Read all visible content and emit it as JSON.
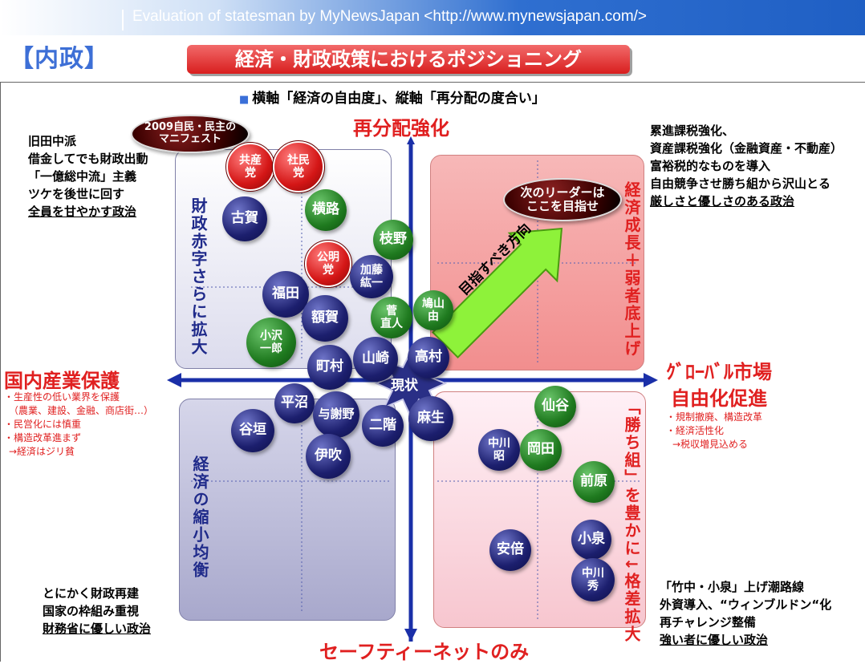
{
  "header": "Evaluation of statesman   by MyNewsJapan <http://www.mynewsjapan.com/>",
  "section_title": "【内政】",
  "main_title": "経済・財政政策におけるポジショニング",
  "subtitle": "横軸「経済の自由度」、縦軸「再分配の度合い」",
  "axes": {
    "top": "再分配強化",
    "bottom": "セーフティーネットのみ",
    "left": "国内産業保護",
    "right_line1": "ｸﾞﾛｰﾊﾞﾙ市場",
    "right_line2": "自由化促進",
    "center": "現状"
  },
  "quadrant_labels": {
    "top_left": "財政赤字さらに拡大",
    "bottom_left": "経済の縮小均衡",
    "top_right": "経済成長＋弱者底上げ",
    "bottom_right": "「勝ち組」を豊かに↓格差拡大"
  },
  "notes": {
    "top_left": [
      "旧田中派",
      "借金してでも財政出動",
      "「一億総中流」主義",
      "ツケを後世に回す",
      "全員を甘やかす政治"
    ],
    "top_right": [
      "累進課税強化、",
      "資産課税強化（金融資産・不動産）",
      "富裕税的なものを導入",
      "自由競争させ勝ち組から沢山とる",
      "厳しさと優しさのある政治"
    ],
    "bottom_left": [
      "とにかく財政再建",
      "国家の枠組み重視",
      "財務省に優しい政治"
    ],
    "bottom_right": [
      "「竹中・小泉」上げ潮路線",
      "外資導入、“ウィンブルドン“化",
      "再チャレンジ整備",
      "強い者に優しい政治"
    ]
  },
  "left_notes": [
    "・生産性の低い業界を保護",
    "（農業、建設、金融、商店街…）",
    "・民営化には慎重",
    "・構造改革進まず",
    "→経済はジリ貧"
  ],
  "right_notes": [
    "・規制撤廃、構造改革",
    "・経済活性化",
    "→税収増見込める"
  ],
  "manifesto_label": "2009自民・民主の\nマニフェスト",
  "leader_label": "次のリーダーは\nここを目指せ",
  "arrow_label": "目指すべき方向",
  "colors": {
    "navy": "#1c1f6e",
    "green": "#1f7a1f",
    "red": "#d41616",
    "axis": "#1a2fa8"
  },
  "politicians": [
    {
      "name": "共産\n党",
      "color": "red"
    },
    {
      "name": "社民\n党",
      "color": "red"
    },
    {
      "name": "古賀",
      "color": "navy"
    },
    {
      "name": "横路",
      "color": "green"
    },
    {
      "name": "枝野",
      "color": "green"
    },
    {
      "name": "公明\n党",
      "color": "red"
    },
    {
      "name": "加藤\n紘一",
      "color": "navy"
    },
    {
      "name": "福田",
      "color": "navy"
    },
    {
      "name": "小沢\n一郎",
      "color": "green"
    },
    {
      "name": "額賀",
      "color": "navy"
    },
    {
      "name": "菅\n直人",
      "color": "green"
    },
    {
      "name": "鳩山\n由",
      "color": "green"
    },
    {
      "name": "町村",
      "color": "navy"
    },
    {
      "name": "山崎",
      "color": "navy"
    },
    {
      "name": "高村",
      "color": "navy"
    },
    {
      "name": "平沼",
      "color": "navy"
    },
    {
      "name": "与謝野",
      "color": "navy"
    },
    {
      "name": "谷垣",
      "color": "navy"
    },
    {
      "name": "二階",
      "color": "navy"
    },
    {
      "name": "麻生",
      "color": "navy"
    },
    {
      "name": "伊吹",
      "color": "navy"
    },
    {
      "name": "仙谷",
      "color": "green"
    },
    {
      "name": "中川\n昭",
      "color": "navy"
    },
    {
      "name": "岡田",
      "color": "green"
    },
    {
      "name": "前原",
      "color": "green"
    },
    {
      "name": "安倍",
      "color": "navy"
    },
    {
      "name": "小泉",
      "color": "navy"
    },
    {
      "name": "中川\n秀",
      "color": "navy"
    }
  ]
}
